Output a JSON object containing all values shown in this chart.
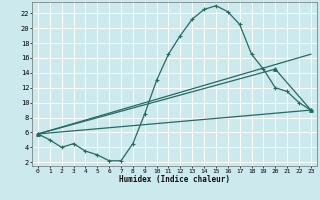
{
  "xlabel": "Humidex (Indice chaleur)",
  "bg_color": "#cce9ee",
  "grid_color": "#ffffff",
  "line_color": "#256b62",
  "xlim": [
    -0.5,
    23.5
  ],
  "ylim": [
    1.5,
    23.5
  ],
  "xticks": [
    0,
    1,
    2,
    3,
    4,
    5,
    6,
    7,
    8,
    9,
    10,
    11,
    12,
    13,
    14,
    15,
    16,
    17,
    18,
    19,
    20,
    21,
    22,
    23
  ],
  "yticks": [
    2,
    4,
    6,
    8,
    10,
    12,
    14,
    16,
    18,
    20,
    22
  ],
  "curve1_x": [
    0,
    1,
    2,
    3,
    4,
    5,
    6,
    7,
    8,
    9,
    10,
    11,
    12,
    13,
    14,
    15,
    16,
    17,
    18,
    19,
    20,
    21,
    22,
    23
  ],
  "curve1_y": [
    5.8,
    5.0,
    4.0,
    4.5,
    3.5,
    3.0,
    2.2,
    2.2,
    4.5,
    8.5,
    13.0,
    16.5,
    19.0,
    21.2,
    22.5,
    23.0,
    22.2,
    20.5,
    16.5,
    14.5,
    12.0,
    11.5,
    10.0,
    9.0
  ],
  "curve2_x": [
    0,
    23
  ],
  "curve2_y": [
    5.8,
    9.0
  ],
  "curve3_x": [
    0,
    23
  ],
  "curve3_y": [
    5.8,
    16.5
  ],
  "curve4_x": [
    0,
    20,
    23
  ],
  "curve4_y": [
    5.8,
    14.5,
    9.0
  ]
}
